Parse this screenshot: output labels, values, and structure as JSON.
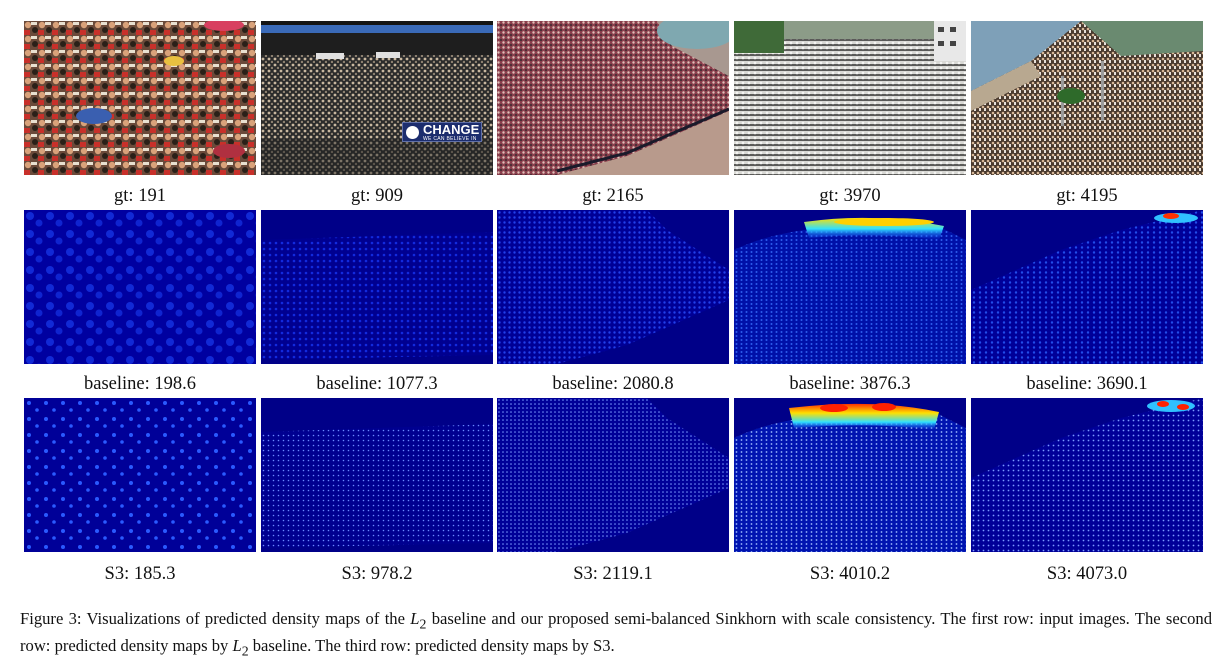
{
  "figure": {
    "rows": [
      {
        "kind": "input",
        "labels": [
          "gt: 191",
          "gt: 909",
          "gt: 2165",
          "gt: 3970",
          "gt: 4195"
        ]
      },
      {
        "kind": "baseline",
        "labels": [
          "baseline: 198.6",
          "baseline: 1077.3",
          "baseline: 2080.8",
          "baseline: 3876.3",
          "baseline: 3690.1"
        ]
      },
      {
        "kind": "s3",
        "labels": [
          "S3: 185.3",
          "S3: 978.2",
          "S3: 2119.1",
          "S3: 4010.2",
          "S3: 4073.0"
        ]
      }
    ],
    "banner": {
      "title": "CHANGE",
      "subtitle": "WE CAN BELIEVE IN"
    },
    "colors": {
      "density_background": "#00008c",
      "density_mid": "#1a3cff",
      "density_hot": "#ffe000",
      "density_peak": "#ff2000"
    }
  },
  "caption": {
    "prefix": "Figure 3: Visualizations of predicted density maps of the ",
    "math1": "L",
    "sub1": "2",
    "middle": " baseline and our proposed semi-balanced Sinkhorn with scale consistency. The first row: input images. The second row: predicted density maps by ",
    "math2": "L",
    "sub2": "2",
    "suffix": " baseline. The third row: predicted density maps by S3."
  }
}
